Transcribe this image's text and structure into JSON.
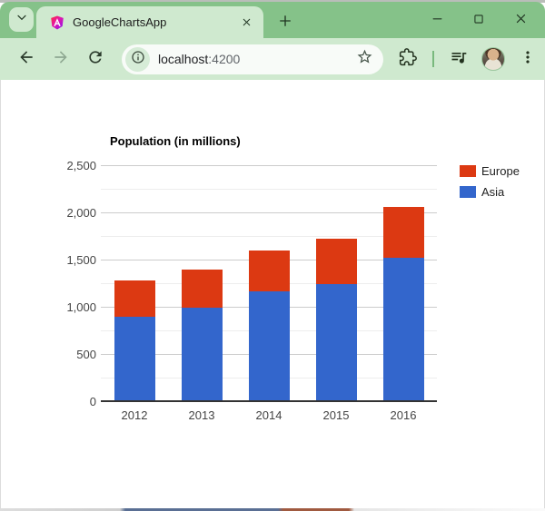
{
  "window": {
    "tab_title": "GoogleChartsApp",
    "controls": {
      "minimize": "minimize",
      "maximize": "maximize",
      "close": "close"
    }
  },
  "toolbar": {
    "url_host": "localhost",
    "url_port": ":4200"
  },
  "icons": {
    "tab-search-chevron": "chevron-down",
    "angular-logo": "gradient shield A",
    "tab-close": "x",
    "new-tab": "plus",
    "window-minimize": "horizontal line",
    "window-maximize": "square outline",
    "window-close": "x",
    "back": "left arrow",
    "forward": "right arrow (disabled)",
    "reload": "circular arrow",
    "site-info": "circled i",
    "bookmark-star": "star outline",
    "extensions": "puzzle piece",
    "media-controls": "playlist with music note",
    "profile-avatar": "user photo circle",
    "menu": "three vertical dots"
  },
  "colors": {
    "tabstrip_bg": "#85c289",
    "toolbar_bg": "#cfe9cf",
    "urlbar_bg": "#f8fbf8",
    "page_bg": "#ffffff",
    "grid_major": "#cccccc",
    "grid_minor": "#ededed",
    "axis_text": "#444444",
    "baseline": "#333333",
    "series_asia": "#3366cc",
    "series_europe": "#dc3912"
  },
  "chart_data": {
    "type": "bar",
    "stacked": true,
    "title": "Population (in millions)",
    "categories": [
      "2012",
      "2013",
      "2014",
      "2015",
      "2016"
    ],
    "series": [
      {
        "name": "Asia",
        "color": "#3366cc",
        "values": [
          900,
          1000,
          1170,
          1250,
          1530
        ]
      },
      {
        "name": "Europe",
        "color": "#dc3912",
        "values": [
          390,
          400,
          440,
          480,
          540
        ]
      }
    ],
    "legend": {
      "position": "right",
      "order": [
        "Europe",
        "Asia"
      ]
    },
    "xlabel": "",
    "ylabel": "",
    "ylim": [
      0,
      2500
    ],
    "yticks": [
      {
        "value": 0,
        "label": "0"
      },
      {
        "value": 500,
        "label": "500"
      },
      {
        "value": 1000,
        "label": "1,000"
      },
      {
        "value": 1500,
        "label": "1,500"
      },
      {
        "value": 2000,
        "label": "2,000"
      },
      {
        "value": 2500,
        "label": "2,500"
      }
    ],
    "minor_tick_step": 250,
    "grid": true
  }
}
